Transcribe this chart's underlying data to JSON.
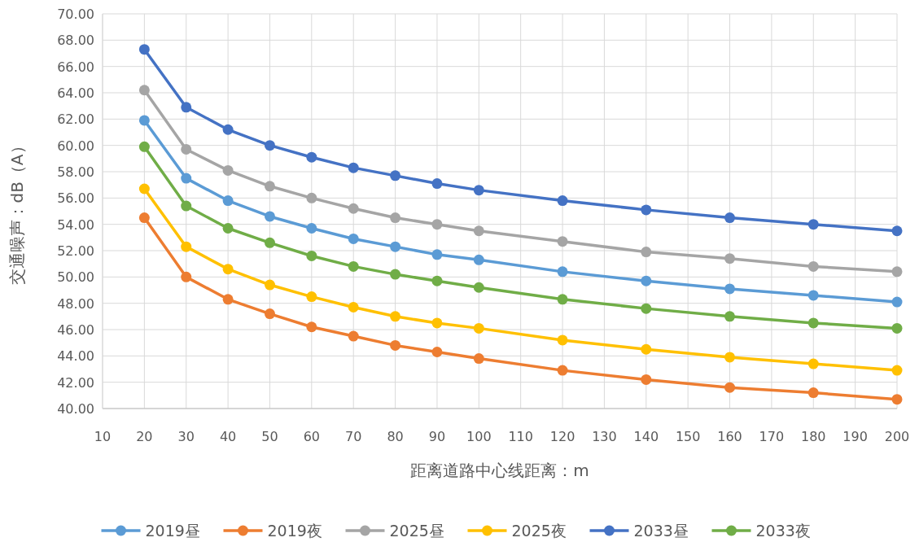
{
  "chart_data": {
    "type": "line",
    "xlabel": "距离道路中心线距离：m",
    "ylabel": "交通噪声：dB（A）",
    "x": [
      20,
      30,
      40,
      50,
      60,
      70,
      80,
      90,
      100,
      120,
      140,
      160,
      180,
      200
    ],
    "series": [
      {
        "name": "2019昼",
        "color": "#5b9bd5",
        "values": [
          61.9,
          57.5,
          55.8,
          54.6,
          53.7,
          52.9,
          52.3,
          51.7,
          51.3,
          50.4,
          49.7,
          49.1,
          48.6,
          48.1
        ]
      },
      {
        "name": "2019夜",
        "color": "#ed7d31",
        "values": [
          54.5,
          50.0,
          48.3,
          47.2,
          46.2,
          45.5,
          44.8,
          44.3,
          43.8,
          42.9,
          42.2,
          41.6,
          41.2,
          40.7
        ]
      },
      {
        "name": "2025昼",
        "color": "#a5a5a5",
        "values": [
          64.2,
          59.7,
          58.1,
          56.9,
          56.0,
          55.2,
          54.5,
          54.0,
          53.5,
          52.7,
          51.9,
          51.4,
          50.8,
          50.4
        ]
      },
      {
        "name": "2025夜",
        "color": "#ffc000",
        "values": [
          56.7,
          52.3,
          50.6,
          49.4,
          48.5,
          47.7,
          47.0,
          46.5,
          46.1,
          45.2,
          44.5,
          43.9,
          43.4,
          42.9
        ]
      },
      {
        "name": "2033昼",
        "color": "#4472c4",
        "values": [
          67.3,
          62.9,
          61.2,
          60.0,
          59.1,
          58.3,
          57.7,
          57.1,
          56.6,
          55.8,
          55.1,
          54.5,
          54.0,
          53.5
        ]
      },
      {
        "name": "2033夜",
        "color": "#70ad47",
        "values": [
          59.9,
          55.4,
          53.7,
          52.6,
          51.6,
          50.8,
          50.2,
          49.7,
          49.2,
          48.3,
          47.6,
          47.0,
          46.5,
          46.1
        ]
      }
    ],
    "xlim": [
      10,
      200
    ],
    "xticks": [
      10,
      20,
      30,
      40,
      50,
      60,
      70,
      80,
      90,
      100,
      110,
      120,
      130,
      140,
      150,
      160,
      170,
      180,
      190,
      200
    ],
    "ylim": [
      40,
      70
    ],
    "yticks": [
      {
        "value": 40,
        "label": "40.00"
      },
      {
        "value": 42,
        "label": "42.00"
      },
      {
        "value": 44,
        "label": "44.00"
      },
      {
        "value": 46,
        "label": "46.00"
      },
      {
        "value": 48,
        "label": "48.00"
      },
      {
        "value": 50,
        "label": "50.00"
      },
      {
        "value": 52,
        "label": "52.00"
      },
      {
        "value": 54,
        "label": "54.00"
      },
      {
        "value": 56,
        "label": "56.00"
      },
      {
        "value": 58,
        "label": "58.00"
      },
      {
        "value": 60,
        "label": "60.00"
      },
      {
        "value": 62,
        "label": "62.00"
      },
      {
        "value": 64,
        "label": "64.00"
      },
      {
        "value": 66,
        "label": "66.00"
      },
      {
        "value": 68,
        "label": "68.00"
      },
      {
        "value": 70,
        "label": "70.00"
      }
    ],
    "grid": true,
    "legend": "bottom",
    "marker": "circle",
    "line_style": "solid"
  }
}
